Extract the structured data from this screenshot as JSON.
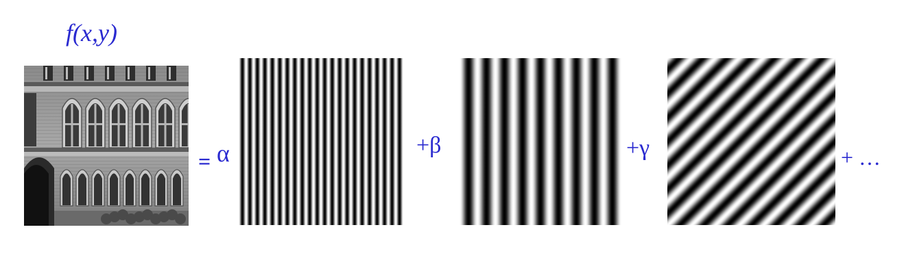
{
  "equation": {
    "title": "f(x,y)",
    "equals": "=",
    "coefficients": [
      "α",
      "+β",
      "+γ"
    ],
    "ellipsis": "+ …"
  },
  "images": [
    {
      "name": "building-photo",
      "kind": "grayscale-photograph"
    },
    {
      "name": "high-frequency-vertical-sinusoid",
      "kind": "sinusoid",
      "cycles": 22,
      "orientation_deg": 0
    },
    {
      "name": "low-frequency-vertical-sinusoid",
      "kind": "sinusoid",
      "cycles": 9,
      "orientation_deg": 0
    },
    {
      "name": "diagonal-sinusoid",
      "kind": "sinusoid",
      "cycles": 14,
      "orientation_deg": 45
    }
  ],
  "colors": {
    "text": "#2a2ad0"
  }
}
